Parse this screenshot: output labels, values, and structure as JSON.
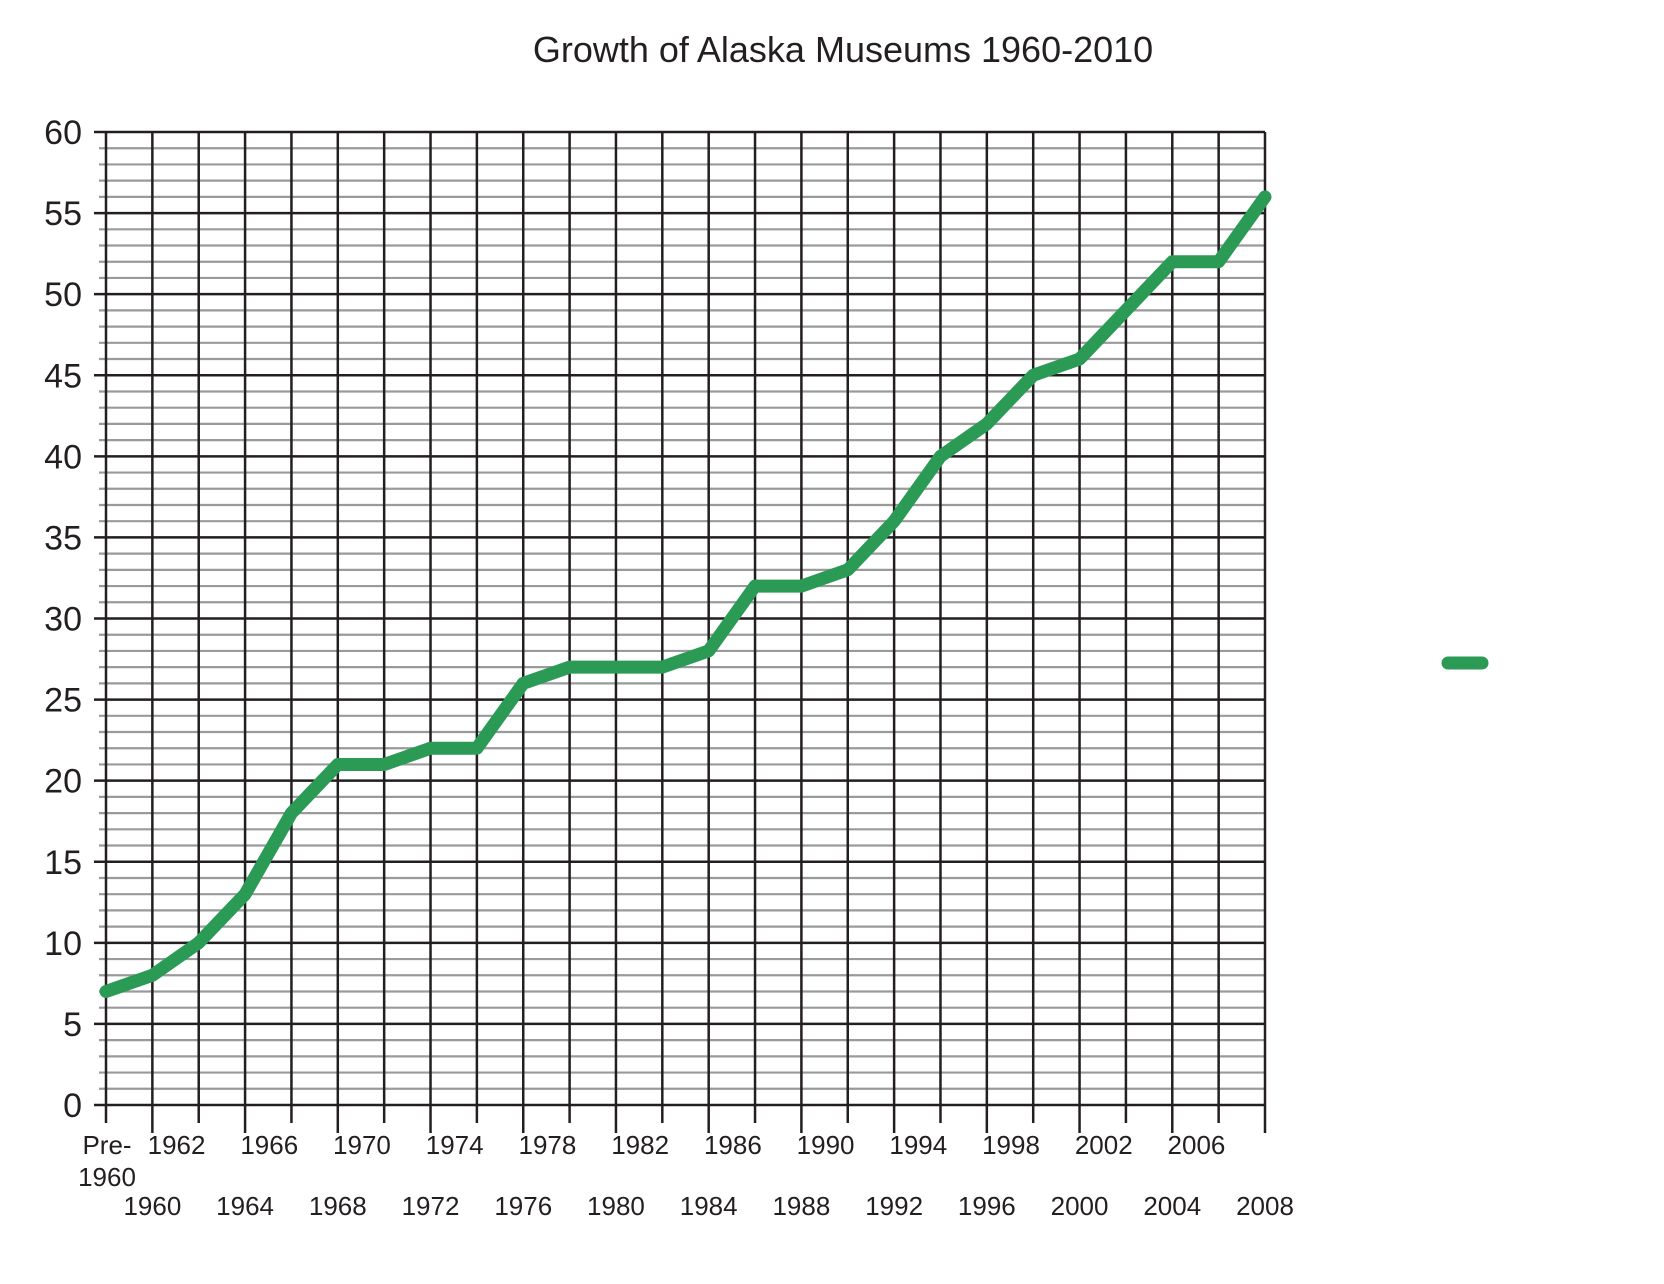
{
  "chart_data": {
    "type": "line",
    "title": "Growth of Alaska Museums 1960-2010",
    "xlabel": "",
    "ylabel": "",
    "ylim": [
      0,
      60
    ],
    "y_major_step": 5,
    "y_minor_step": 1,
    "grid": true,
    "legend": "right",
    "x": [
      "Pre-1960",
      "1960",
      "1962",
      "1964",
      "1966",
      "1968",
      "1970",
      "1972",
      "1974",
      "1976",
      "1978",
      "1980",
      "1982",
      "1984",
      "1986",
      "1988",
      "1990",
      "1992",
      "1994",
      "1996",
      "1998",
      "2000",
      "2002",
      "2004",
      "2006",
      "2008"
    ],
    "x_tick_labels_upper": [
      "Pre-",
      "1962",
      "1966",
      "1970",
      "1974",
      "1978",
      "1982",
      "1986",
      "1990",
      "1994",
      "1998",
      "2002",
      "2006"
    ],
    "x_tick_label_pre_second_line": "1960",
    "x_tick_labels_lower": [
      "1960",
      "1964",
      "1968",
      "1972",
      "1976",
      "1980",
      "1984",
      "1988",
      "1992",
      "1996",
      "2000",
      "2004",
      "2008"
    ],
    "y_tick_labels": [
      "0",
      "5",
      "10",
      "15",
      "20",
      "25",
      "30",
      "35",
      "40",
      "45",
      "50",
      "55",
      "60"
    ],
    "series": [
      {
        "color": "#2a9a55",
        "values": [
          7,
          8,
          10,
          13,
          18,
          21,
          21,
          22,
          22,
          26,
          27,
          27,
          27,
          28,
          32,
          32,
          33,
          36,
          40,
          42,
          45,
          46,
          49,
          52,
          52,
          56
        ]
      }
    ],
    "colors": {
      "major_grid": "#231f20",
      "minor_grid": "#9a9a9a",
      "line": "#2a9a55",
      "text": "#231f20"
    }
  }
}
